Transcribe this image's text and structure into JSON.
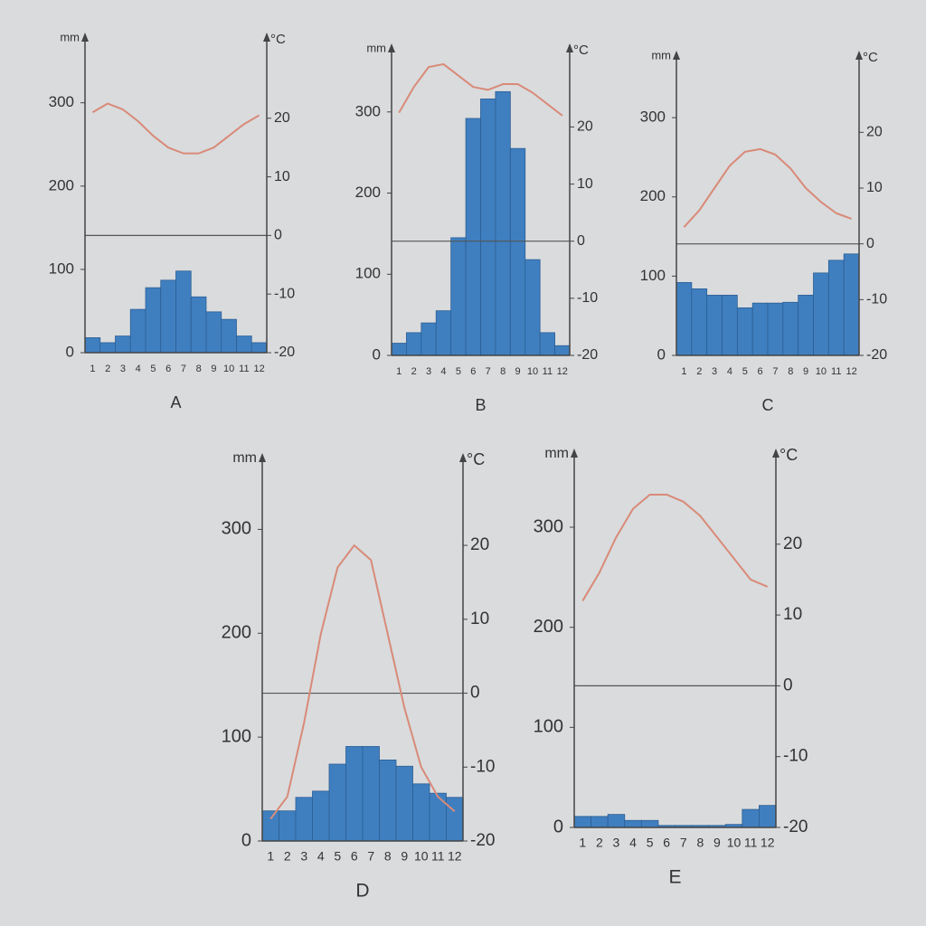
{
  "chart_data": [
    {
      "type": "climate",
      "title": "A",
      "y_label": "mm",
      "y2_label": "°C",
      "categories": [
        "1",
        "2",
        "3",
        "4",
        "5",
        "6",
        "7",
        "8",
        "9",
        "10",
        "11",
        "12"
      ],
      "ylim": [
        0,
        380
      ],
      "yticks": [
        0,
        100,
        200,
        300
      ],
      "y2lim": [
        -20,
        34
      ],
      "y2ticks": [
        -20,
        -10,
        0,
        10,
        20
      ],
      "series": [
        {
          "type": "bar",
          "color": "#3f7fc0",
          "values": [
            18,
            12,
            20,
            52,
            78,
            87,
            98,
            67,
            49,
            40,
            20,
            12
          ]
        },
        {
          "type": "line",
          "axis": "y2",
          "color": "#d98a78",
          "values": [
            21,
            22.5,
            21.5,
            19.5,
            17,
            15,
            14,
            14,
            15,
            17,
            19,
            20.5
          ]
        }
      ]
    },
    {
      "type": "climate",
      "title": "B",
      "y_label": "mm",
      "y2_label": "°C",
      "categories": [
        "1",
        "2",
        "3",
        "4",
        "5",
        "6",
        "7",
        "8",
        "9",
        "10",
        "11",
        "12"
      ],
      "ylim": [
        0,
        380
      ],
      "yticks": [
        0,
        100,
        200,
        300
      ],
      "y2lim": [
        -20,
        34
      ],
      "y2ticks": [
        -20,
        -10,
        0,
        10,
        20
      ],
      "series": [
        {
          "type": "bar",
          "color": "#3f7fc0",
          "values": [
            15,
            28,
            40,
            55,
            145,
            292,
            316,
            325,
            255,
            118,
            28,
            12
          ]
        },
        {
          "type": "line",
          "axis": "y2",
          "color": "#d98a78",
          "values": [
            22.5,
            27,
            30.5,
            31,
            29,
            27,
            26.5,
            27.5,
            27.5,
            26,
            24,
            22
          ]
        }
      ]
    },
    {
      "type": "climate",
      "title": "C",
      "y_label": "mm",
      "y2_label": "°C",
      "categories": [
        "1",
        "2",
        "3",
        "4",
        "5",
        "6",
        "7",
        "8",
        "9",
        "10",
        "11",
        "12"
      ],
      "ylim": [
        0,
        380
      ],
      "yticks": [
        0,
        100,
        200,
        300
      ],
      "y2lim": [
        -20,
        34
      ],
      "y2ticks": [
        -20,
        -10,
        0,
        10,
        20
      ],
      "series": [
        {
          "type": "bar",
          "color": "#3f7fc0",
          "values": [
            92,
            84,
            76,
            76,
            60,
            66,
            66,
            67,
            76,
            104,
            120,
            128
          ]
        },
        {
          "type": "line",
          "axis": "y2",
          "color": "#d98a78",
          "values": [
            3,
            6,
            10,
            14,
            16.5,
            17,
            16,
            13.5,
            10,
            7.5,
            5.5,
            4.5
          ]
        }
      ]
    },
    {
      "type": "climate",
      "title": "D",
      "y_label": "mm",
      "y2_label": "°C",
      "categories": [
        "1",
        "2",
        "3",
        "4",
        "5",
        "6",
        "7",
        "8",
        "9",
        "10",
        "11",
        "12"
      ],
      "ylim": [
        0,
        370
      ],
      "yticks": [
        0,
        100,
        200,
        300
      ],
      "y2lim": [
        -20,
        32
      ],
      "y2ticks": [
        -20,
        -10,
        0,
        10,
        20
      ],
      "series": [
        {
          "type": "bar",
          "color": "#3f7fc0",
          "values": [
            29,
            29,
            42,
            48,
            74,
            91,
            91,
            78,
            72,
            55,
            46,
            42
          ]
        },
        {
          "type": "line",
          "axis": "y2",
          "color": "#d98a78",
          "values": [
            -17,
            -14,
            -4,
            8,
            17,
            20,
            18,
            8,
            -2,
            -10,
            -14,
            -16
          ]
        }
      ]
    },
    {
      "type": "climate",
      "title": "E",
      "y_label": "mm",
      "y2_label": "°C",
      "categories": [
        "1",
        "2",
        "3",
        "4",
        "5",
        "6",
        "7",
        "8",
        "9",
        "10",
        "11",
        "12"
      ],
      "ylim": [
        0,
        375
      ],
      "yticks": [
        0,
        100,
        200,
        300
      ],
      "y2lim": [
        -20,
        33
      ],
      "y2ticks": [
        -20,
        -10,
        0,
        10,
        20
      ],
      "series": [
        {
          "type": "bar",
          "color": "#3f7fc0",
          "values": [
            11,
            11,
            13,
            7,
            7,
            2,
            2,
            2,
            2,
            3,
            18,
            22
          ]
        },
        {
          "type": "line",
          "axis": "y2",
          "color": "#d98a78",
          "values": [
            12,
            16,
            21,
            25,
            27,
            27,
            26,
            24,
            21,
            18,
            15,
            14
          ]
        }
      ]
    }
  ]
}
